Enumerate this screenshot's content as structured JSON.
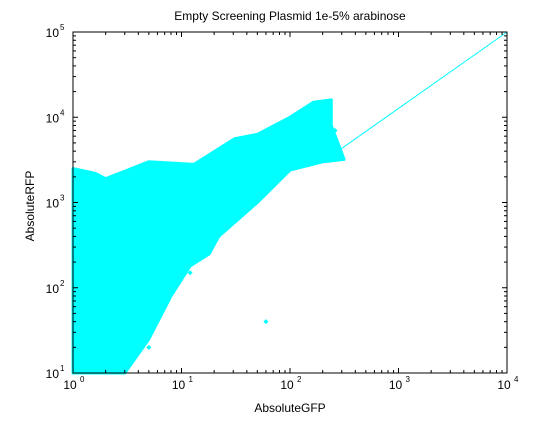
{
  "chart_data": {
    "type": "scatter",
    "title": "Empty Screening Plasmid 1e-5% arabinose",
    "xlabel": "AbsoluteGFP",
    "ylabel": "AbsoluteRFP",
    "xscale": "log",
    "yscale": "log",
    "xlim": [
      1,
      10000
    ],
    "ylim": [
      10,
      100000
    ],
    "xticks": [
      {
        "value": 1,
        "base": "10",
        "exp": "0"
      },
      {
        "value": 10,
        "base": "10",
        "exp": "1"
      },
      {
        "value": 100,
        "base": "10",
        "exp": "2"
      },
      {
        "value": 1000,
        "base": "10",
        "exp": "3"
      },
      {
        "value": 10000,
        "base": "10",
        "exp": "4"
      }
    ],
    "yticks": [
      {
        "value": 10,
        "base": "10",
        "exp": "1"
      },
      {
        "value": 100,
        "base": "10",
        "exp": "2"
      },
      {
        "value": 1000,
        "base": "10",
        "exp": "3"
      },
      {
        "value": 10000,
        "base": "10",
        "exp": "4"
      },
      {
        "value": 100000,
        "base": "10",
        "exp": "5"
      }
    ],
    "grid": false,
    "marker_color": "#00ffff",
    "line_color": "#00ffff",
    "reference_line": {
      "x": [
        200,
        10000
      ],
      "y": [
        3000,
        100000
      ]
    },
    "point_cloud_outline": {
      "x": [
        1,
        1,
        1.6,
        2,
        5,
        13,
        31,
        50,
        100,
        165,
        240,
        240,
        315,
        200,
        100,
        50,
        22,
        18,
        12,
        8,
        5,
        3,
        1.2
      ],
      "y": [
        10,
        2500,
        2200,
        1900,
        3000,
        2800,
        5600,
        6300,
        10000,
        15000,
        16000,
        8000,
        3200,
        3000,
        2400,
        1000,
        400,
        250,
        180,
        80,
        25,
        10,
        10
      ]
    },
    "series": [
      {
        "points": [
          [
            1.2,
            14
          ],
          [
            1.5,
            40
          ],
          [
            2,
            25
          ],
          [
            2.5,
            80
          ],
          [
            3,
            15
          ],
          [
            3,
            150
          ],
          [
            4,
            60
          ],
          [
            4,
            300
          ],
          [
            5,
            20
          ],
          [
            5,
            120
          ],
          [
            6,
            400
          ],
          [
            6,
            60
          ],
          [
            7,
            200
          ],
          [
            8,
            700
          ],
          [
            8,
            90
          ],
          [
            10,
            300
          ],
          [
            10,
            1000
          ],
          [
            12,
            150
          ],
          [
            12,
            600
          ],
          [
            15,
            1500
          ],
          [
            15,
            350
          ],
          [
            18,
            800
          ],
          [
            20,
            2000
          ],
          [
            20,
            500
          ],
          [
            25,
            1200
          ],
          [
            25,
            3000
          ],
          [
            30,
            800
          ],
          [
            30,
            2500
          ],
          [
            35,
            4000
          ],
          [
            40,
            1500
          ],
          [
            45,
            3500
          ],
          [
            50,
            6000
          ],
          [
            55,
            2000
          ],
          [
            60,
            4500
          ],
          [
            70,
            3000
          ],
          [
            80,
            7000
          ],
          [
            90,
            4000
          ],
          [
            100,
            9000
          ],
          [
            110,
            5000
          ],
          [
            130,
            12000
          ],
          [
            150,
            7000
          ],
          [
            180,
            15000
          ],
          [
            220,
            11000
          ],
          [
            260,
            7000
          ],
          [
            1.1,
            1200
          ],
          [
            1.3,
            1800
          ],
          [
            1.5,
            700
          ],
          [
            2,
            1500
          ],
          [
            1.1,
            300
          ],
          [
            1.4,
            500
          ],
          [
            2.8,
            900
          ],
          [
            3.5,
            1800
          ],
          [
            4.5,
            1100
          ],
          [
            60,
            40
          ],
          [
            5,
            1900
          ],
          [
            8,
            2500
          ],
          [
            12,
            2200
          ]
        ]
      }
    ]
  }
}
